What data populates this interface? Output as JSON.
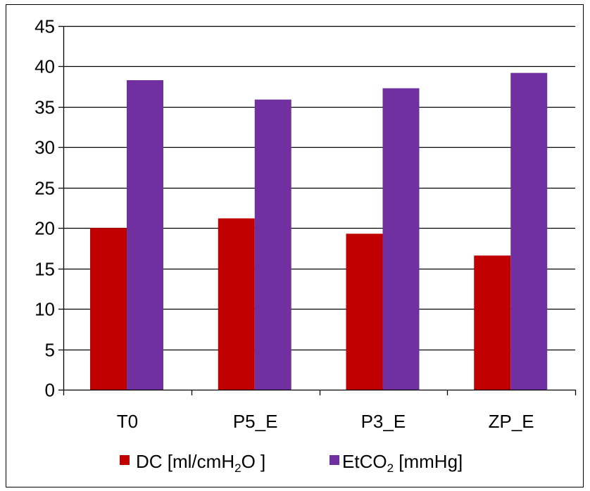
{
  "chart_data": {
    "type": "bar",
    "categories": [
      "T0",
      "P5_E",
      "P3_E",
      "ZP_E"
    ],
    "series": [
      {
        "name": "DC [ml/cmH₂O ]",
        "legend_main": "DC [ml/cmH",
        "legend_sub": "2",
        "legend_rest": "O ]",
        "color": "#c00000",
        "values": [
          20.0,
          21.2,
          19.3,
          16.6
        ]
      },
      {
        "name": "EtCO₂ [mmHg]",
        "legend_main": "EtCO",
        "legend_sub": "2",
        "legend_rest": " [mmHg]",
        "color": "#7030a0",
        "values": [
          38.3,
          35.9,
          37.3,
          39.2
        ]
      }
    ],
    "y_ticks": [
      "0",
      "5",
      "10",
      "15",
      "20",
      "25",
      "30",
      "35",
      "40",
      "45"
    ],
    "ylim": [
      0,
      45
    ],
    "title": "",
    "xlabel": "",
    "ylabel": "",
    "grid": true,
    "legend_position": "bottom"
  }
}
